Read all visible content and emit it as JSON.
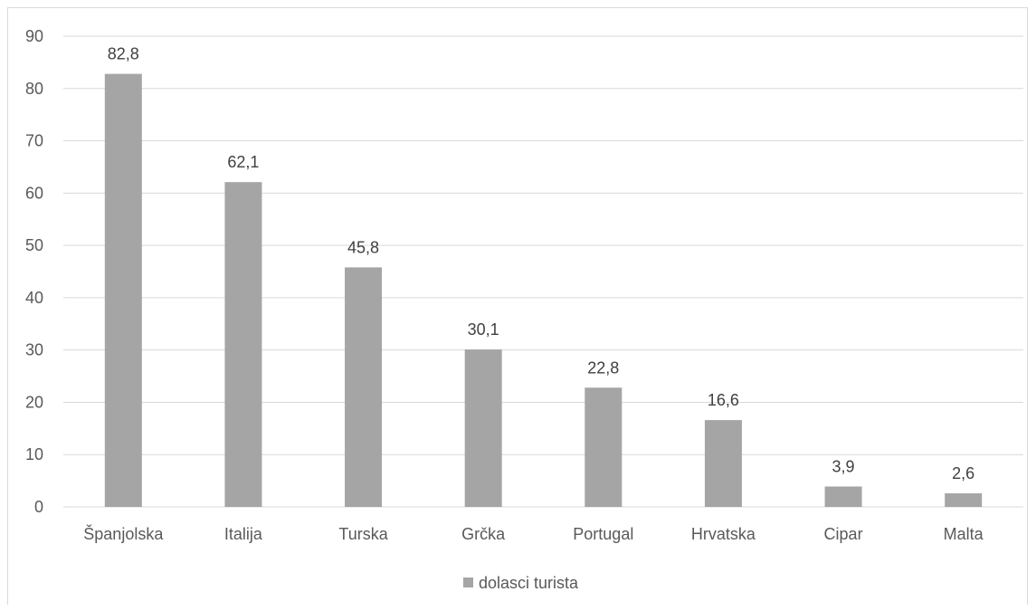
{
  "chart_data": {
    "type": "bar",
    "categories": [
      "Španjolska",
      "Italija",
      "Turska",
      "Grčka",
      "Portugal",
      "Hrvatska",
      "Cipar",
      "Malta"
    ],
    "series": [
      {
        "name": "dolasci turista",
        "values": [
          82.8,
          62.1,
          45.8,
          30.1,
          22.8,
          16.6,
          3.9,
          2.6
        ],
        "data_labels": [
          "82,8",
          "62,1",
          "45,8",
          "30,1",
          "22,8",
          "16,6",
          "3,9",
          "2,6"
        ],
        "color": "#a5a5a5"
      }
    ],
    "title": "",
    "xlabel": "",
    "ylabel": "",
    "ylim": [
      0,
      90
    ],
    "yticks": [
      0,
      10,
      20,
      30,
      40,
      50,
      60,
      70,
      80,
      90
    ],
    "grid": true,
    "gridline_color": "#d9d9d9",
    "legend": "bottom"
  }
}
